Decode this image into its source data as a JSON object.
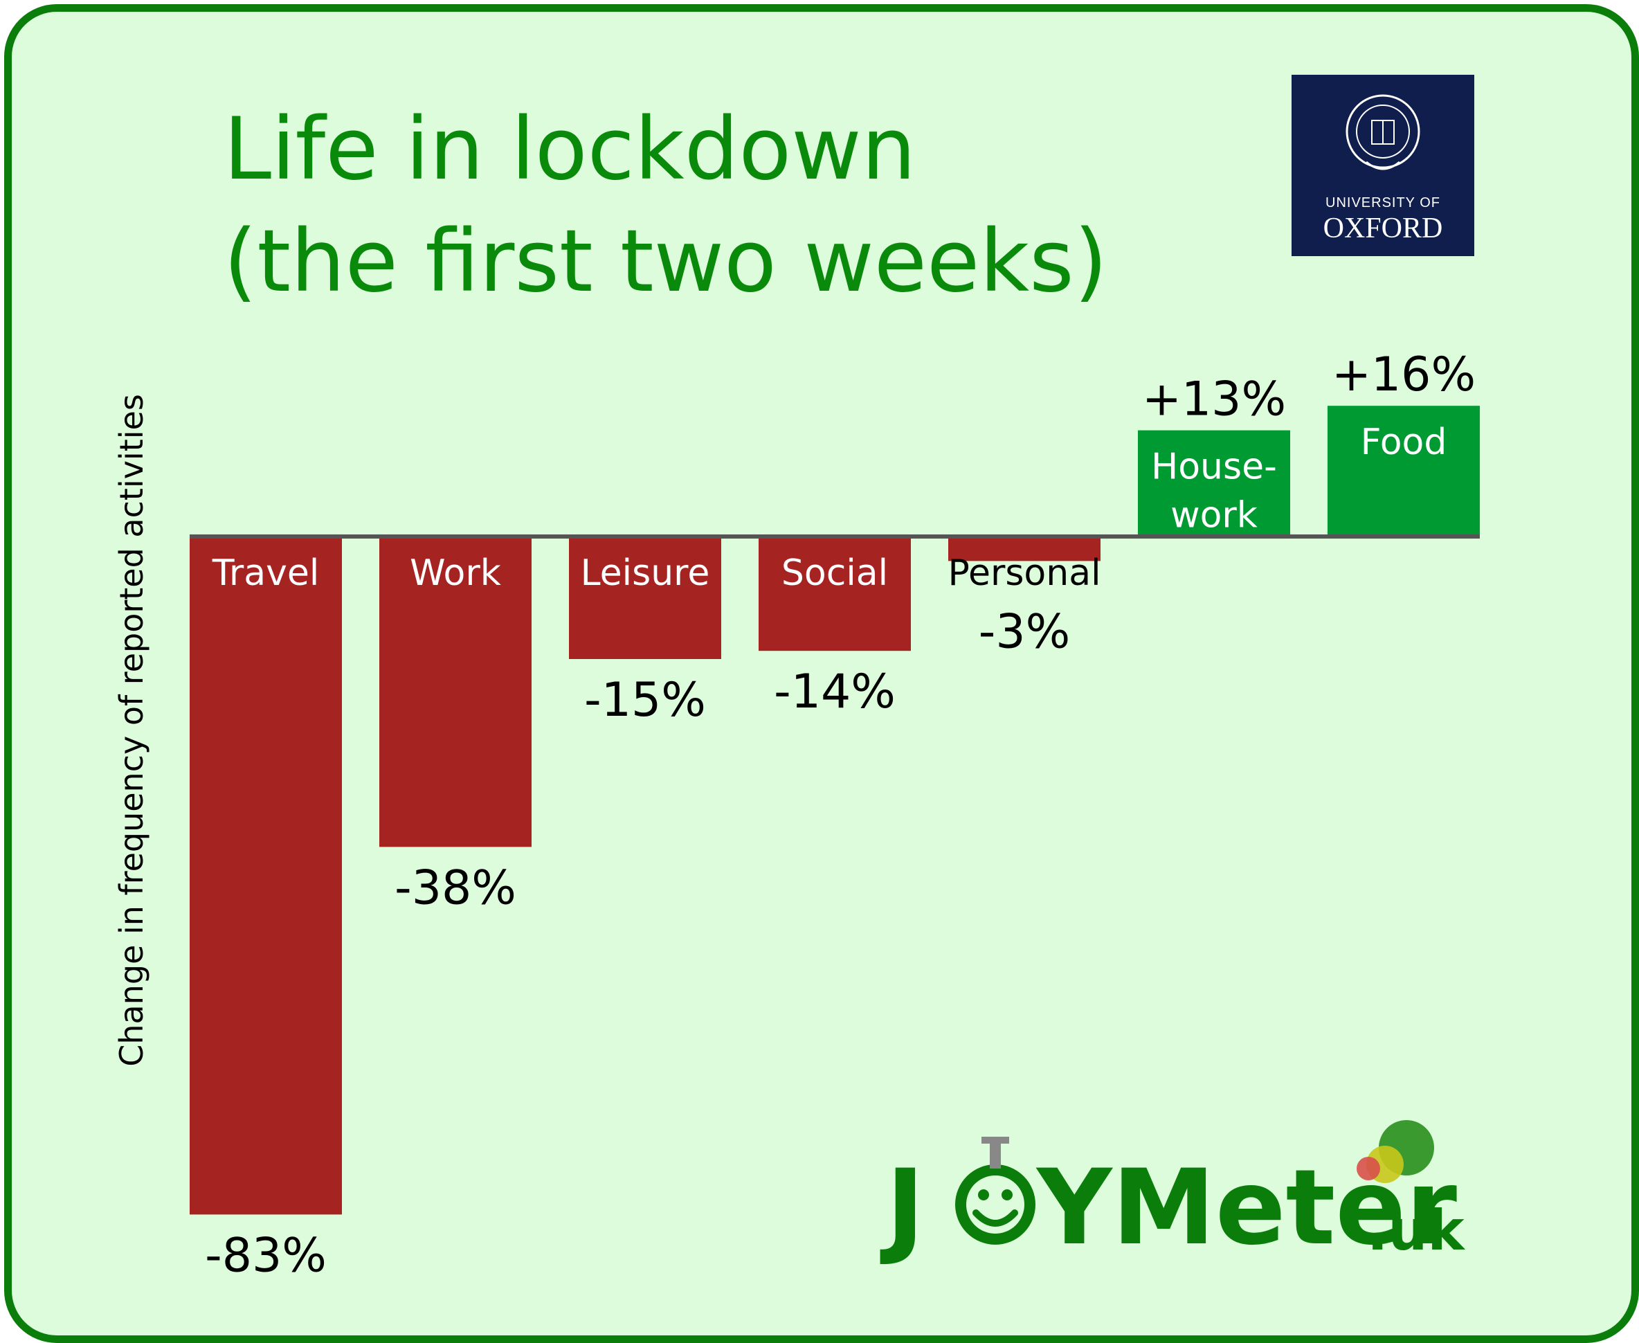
{
  "chart_data": {
    "type": "bar",
    "title": "Life in lockdown",
    "subtitle": "(the first two weeks)",
    "ylabel": "Change in frequency of reported activities",
    "xlabel": "",
    "categories": [
      "Travel",
      "Work",
      "Leisure",
      "Social",
      "Personal",
      "House-\nwork",
      "Food"
    ],
    "values": [
      -83,
      -38,
      -15,
      -14,
      -3,
      13,
      16
    ],
    "value_labels": [
      "-83%",
      "-38%",
      "-15%",
      "-14%",
      "-3%",
      "+13%",
      "+16%"
    ],
    "ylim": [
      -85,
      20
    ],
    "grid": false,
    "legend": "none",
    "colors": {
      "negative": "#a52422",
      "positive": "#009a32",
      "axis": "#555555"
    }
  },
  "branding": {
    "oxford": {
      "line1": "UNIVERSITY OF",
      "line2": "OXFORD"
    },
    "joymeter": {
      "j": "J",
      "ymeter": "YMeter",
      "uk": ".uk"
    }
  }
}
